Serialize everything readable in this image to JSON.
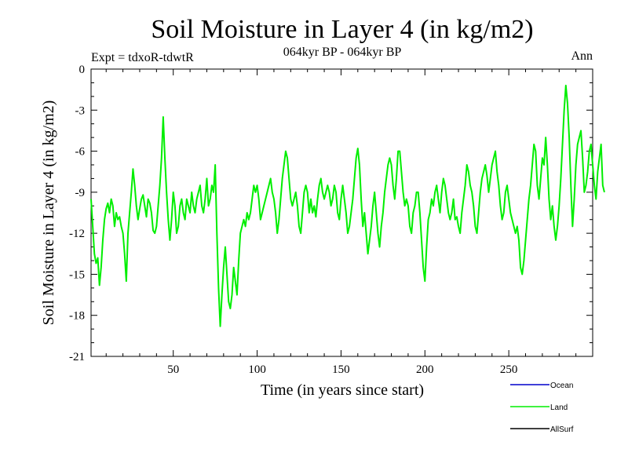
{
  "chart_data": {
    "type": "line",
    "title": "Soil Moisture in Layer 4 (in kg/m2)",
    "subtitle": "064kyr BP - 064kyr BP",
    "experiment": "Expt = tdxoR-tdwtR",
    "season": "Ann",
    "xlabel": "Time (in years since start)",
    "ylabel": "Soil Moisture in Layer 4 (in kg/m2)",
    "xlim": [
      1,
      300
    ],
    "ylim": [
      -21,
      0
    ],
    "xticks_major": [
      50,
      100,
      150,
      200,
      250
    ],
    "xtick_labels": [
      "50",
      "100",
      "150",
      "200",
      "250"
    ],
    "yticks_major": [
      0,
      -3,
      -6,
      -9,
      -12,
      -15,
      -18,
      -21
    ],
    "ytick_labels": [
      "0",
      "-3",
      "-6",
      "-9",
      "-12",
      "-15",
      "-18",
      "-21"
    ],
    "legend": [
      {
        "name": "Ocean",
        "color": "#0000cc"
      },
      {
        "name": "Land",
        "color": "#00ee00"
      },
      {
        "name": "AllSurf",
        "color": "#000000"
      }
    ],
    "series": [
      {
        "name": "Land",
        "color": "#00ee00",
        "x_start": 1,
        "x_step": 1,
        "values": [
          -9.5,
          -11.5,
          -13.5,
          -14.2,
          -13.8,
          -15.8,
          -14.5,
          -12.5,
          -11.0,
          -10.2,
          -9.8,
          -10.5,
          -9.5,
          -10.0,
          -11.5,
          -10.5,
          -11.0,
          -10.8,
          -11.5,
          -12.0,
          -13.5,
          -15.5,
          -12.0,
          -10.5,
          -9.0,
          -7.3,
          -8.5,
          -10.0,
          -11.0,
          -10.2,
          -9.5,
          -9.2,
          -10.0,
          -10.8,
          -9.5,
          -9.8,
          -10.5,
          -11.8,
          -12.0,
          -11.5,
          -10.0,
          -8.5,
          -6.5,
          -3.5,
          -6.5,
          -9.0,
          -11.0,
          -12.5,
          -11.0,
          -9.0,
          -10.0,
          -12.0,
          -11.5,
          -10.0,
          -9.5,
          -10.5,
          -11.0,
          -9.5,
          -10.0,
          -10.5,
          -9.0,
          -10.0,
          -10.5,
          -9.5,
          -9.0,
          -8.5,
          -10.0,
          -10.5,
          -9.5,
          -8.0,
          -10.0,
          -9.5,
          -8.5,
          -9.0,
          -7.0,
          -12.0,
          -16.0,
          -18.8,
          -16.5,
          -14.5,
          -13.0,
          -15.0,
          -17.0,
          -17.5,
          -16.5,
          -14.5,
          -15.5,
          -16.5,
          -14.0,
          -12.0,
          -11.5,
          -11.0,
          -11.5,
          -10.5,
          -11.0,
          -10.5,
          -9.5,
          -8.5,
          -9.0,
          -8.5,
          -9.5,
          -11.0,
          -10.5,
          -10.0,
          -9.5,
          -9.0,
          -8.5,
          -8.0,
          -9.0,
          -9.5,
          -10.5,
          -12.0,
          -11.0,
          -9.5,
          -8.0,
          -7.0,
          -6.0,
          -6.5,
          -8.0,
          -9.5,
          -10.0,
          -9.5,
          -9.0,
          -10.0,
          -11.5,
          -12.0,
          -10.5,
          -9.0,
          -8.5,
          -9.0,
          -10.5,
          -9.5,
          -10.5,
          -10.0,
          -10.8,
          -9.5,
          -8.5,
          -8.0,
          -9.0,
          -9.5,
          -9.0,
          -8.5,
          -9.0,
          -10.0,
          -9.5,
          -8.5,
          -9.0,
          -10.5,
          -11.0,
          -9.5,
          -8.5,
          -9.5,
          -10.5,
          -12.0,
          -11.5,
          -10.5,
          -9.5,
          -8.0,
          -6.5,
          -5.8,
          -7.0,
          -9.5,
          -11.5,
          -10.5,
          -12.0,
          -13.5,
          -12.5,
          -11.5,
          -10.0,
          -9.0,
          -10.5,
          -12.0,
          -13.0,
          -11.5,
          -10.5,
          -9.0,
          -8.0,
          -7.0,
          -6.5,
          -7.0,
          -8.5,
          -9.5,
          -8.0,
          -6.0,
          -6.0,
          -7.5,
          -9.0,
          -10.0,
          -9.5,
          -10.0,
          -11.5,
          -12.0,
          -10.5,
          -10.0,
          -9.0,
          -9.0,
          -10.5,
          -12.5,
          -14.5,
          -15.5,
          -13.0,
          -11.0,
          -10.5,
          -9.5,
          -10.0,
          -9.0,
          -8.5,
          -9.5,
          -10.5,
          -9.0,
          -8.0,
          -8.5,
          -9.5,
          -10.5,
          -11.0,
          -10.5,
          -9.5,
          -11.0,
          -10.8,
          -11.5,
          -12.0,
          -10.5,
          -9.5,
          -8.5,
          -7.0,
          -7.5,
          -8.5,
          -9.0,
          -10.0,
          -11.5,
          -12.0,
          -10.5,
          -9.0,
          -8.0,
          -7.5,
          -7.0,
          -7.8,
          -9.0,
          -8.0,
          -7.0,
          -6.5,
          -6.0,
          -7.5,
          -8.5,
          -10.0,
          -11.0,
          -10.5,
          -9.0,
          -8.5,
          -9.5,
          -10.5,
          -11.0,
          -11.5,
          -12.0,
          -11.5,
          -12.5,
          -14.5,
          -15.0,
          -14.0,
          -12.5,
          -11.0,
          -9.5,
          -8.5,
          -7.0,
          -5.5,
          -6.0,
          -8.5,
          -9.5,
          -8.0,
          -6.5,
          -7.0,
          -5.0,
          -7.0,
          -9.5,
          -11.0,
          -10.0,
          -11.5,
          -12.5,
          -11.5,
          -10.0,
          -8.0,
          -5.5,
          -3.0,
          -1.2,
          -2.5,
          -5.0,
          -8.5,
          -11.5,
          -9.5,
          -7.0,
          -5.5,
          -5.0,
          -4.5,
          -6.5,
          -9.0,
          -8.5,
          -7.5,
          -6.0,
          -5.5,
          -7.0,
          -8.5,
          -9.5,
          -7.5,
          -6.5,
          -5.5,
          -8.5,
          -9.0
        ]
      }
    ]
  }
}
